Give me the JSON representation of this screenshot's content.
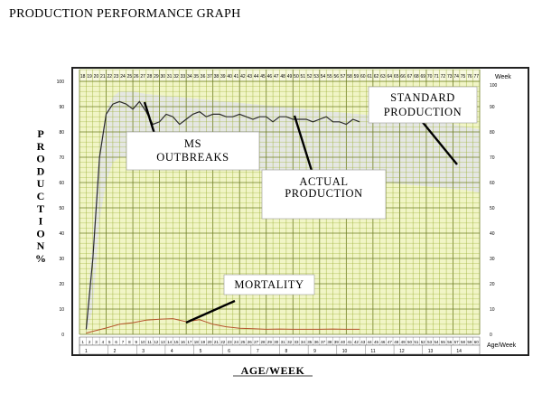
{
  "page_title": "PRODUCTION PERFORMANCE GRAPH",
  "colors": {
    "plot_bg": "#f1f5c6",
    "grid_line": "#9eb23a",
    "grid_major": "#6f7f24",
    "standard_band": "#e3e4e7",
    "actual_line": "#2b2b2b",
    "mortality_line": "#b5542c",
    "frame": "#222222"
  },
  "chart_data": {
    "type": "line",
    "title": "PRODUCTION PERFORMANCE GRAPH",
    "xlabel": "AGE/WEEK",
    "ylabel": "PRODUCTION %",
    "right_axis_title": "Week",
    "right_axis_bottom_label": "Age/Week",
    "xlim": [
      18,
      78
    ],
    "ylim": [
      0,
      100
    ],
    "y_ticks_left": [
      "100",
      "90",
      "80",
      "70",
      "60",
      "50",
      "40",
      "30",
      "20",
      "10",
      "0"
    ],
    "y_ticks_right": [
      "100",
      "90",
      "80",
      "70",
      "60",
      "50",
      "40",
      "30",
      "20",
      "10",
      "0"
    ],
    "x_bottom_tick_labels": [
      "1",
      "2",
      "3",
      "4",
      "5",
      "6",
      "7",
      "8",
      "9",
      "10",
      "11",
      "12",
      "13",
      "14"
    ],
    "grid": true,
    "series": [
      {
        "name": "STANDARD PRODUCTION",
        "style": "band",
        "x": [
          19,
          20,
          21,
          22,
          23,
          24,
          26,
          28,
          32,
          36,
          40,
          44,
          48,
          52,
          56,
          60,
          64,
          68,
          72,
          76,
          78
        ],
        "upper": [
          5,
          40,
          75,
          88,
          94,
          96,
          96,
          95,
          94,
          93,
          92,
          91,
          90,
          89,
          88,
          87,
          86,
          85,
          84,
          82,
          81
        ],
        "lower": [
          0,
          10,
          45,
          60,
          68,
          70,
          70,
          69,
          68,
          67,
          66,
          65,
          64,
          63,
          62,
          61,
          60,
          59,
          58,
          57,
          56
        ]
      },
      {
        "name": "ACTUAL PRODUCTION",
        "x": [
          19,
          20,
          21,
          22,
          23,
          24,
          25,
          26,
          27,
          28,
          29,
          30,
          31,
          32,
          33,
          34,
          35,
          36,
          37,
          38,
          39,
          40,
          41,
          42,
          43,
          44,
          45,
          46,
          47,
          48,
          49,
          50,
          51,
          52,
          53,
          54,
          55,
          56,
          57,
          58,
          59,
          60
        ],
        "values": [
          2,
          30,
          70,
          87,
          91,
          92,
          91,
          89,
          92,
          88,
          83,
          84,
          87,
          86,
          83,
          85,
          87,
          88,
          86,
          87,
          87,
          86,
          86,
          87,
          86,
          85,
          86,
          86,
          84,
          86,
          86,
          85,
          85,
          85,
          84,
          85,
          86,
          84,
          84,
          83,
          85,
          84
        ]
      },
      {
        "name": "MORTALITY",
        "x": [
          19,
          20,
          22,
          24,
          26,
          28,
          30,
          32,
          34,
          36,
          38,
          40,
          42,
          44,
          46,
          48,
          50,
          52,
          54,
          56,
          58,
          60
        ],
        "values": [
          0.5,
          1.2,
          2.5,
          4.0,
          4.6,
          5.6,
          6.0,
          6.2,
          5.0,
          5.8,
          4.0,
          3.0,
          2.4,
          2.2,
          2.0,
          2.1,
          2.0,
          2.0,
          2.0,
          2.1,
          2.0,
          2.0
        ]
      }
    ],
    "annotations": [
      {
        "lines": [
          "MS",
          "OUTBREAKS"
        ]
      },
      {
        "lines": [
          "ACTUAL",
          "PRODUCTION"
        ]
      },
      {
        "lines": [
          "STANDARD",
          "PRODUCTION"
        ]
      },
      {
        "lines": [
          "MORTALITY"
        ]
      }
    ]
  }
}
